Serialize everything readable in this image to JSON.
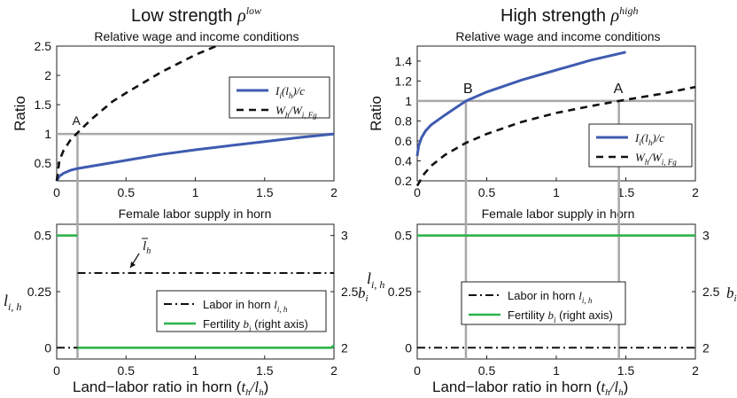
{
  "colors": {
    "blue": "#3f5bb0",
    "green": "#2eb34a",
    "gray": "#a8a8a8",
    "black": "#111111"
  },
  "panels": {
    "low": {
      "title": "Low strength ",
      "title_sym": "ρ",
      "title_sup": "low",
      "top_subtitle": "Relative wage and income conditions",
      "bottom_subtitle": "Female labor supply in horn",
      "top_ylabel": "Ratio",
      "xticks": [
        "0",
        "0.5",
        "1",
        "1.5",
        "2"
      ],
      "top_yticks": [
        "0.5",
        "1",
        "1.5",
        "2",
        "2.5"
      ],
      "bottom_yticks_left": [
        "0",
        "0.25",
        "0.5"
      ],
      "bottom_yticks_right": [
        "2",
        "2.5",
        "3"
      ],
      "legend_top": [
        "I_i(l̄_h)/c",
        "W_h/W_i,Fg"
      ],
      "legend_bottom": [
        "Labor in horn l_i,h",
        "Fertility b_i (right axis)"
      ],
      "point_label": "A",
      "lbar_label": "l̄_h"
    },
    "high": {
      "title": "High strength ",
      "title_sym": "ρ",
      "title_sup": "high",
      "top_subtitle": "Relative wage and income conditions",
      "bottom_subtitle": "Female labor supply in horn",
      "top_ylabel": "Ratio",
      "xticks": [
        "0",
        "0.5",
        "1",
        "1.5",
        "2"
      ],
      "top_yticks": [
        "0.2",
        "0.4",
        "0.6",
        "0.8",
        "1",
        "1.2",
        "1.4"
      ],
      "bottom_yticks_left": [
        "0",
        "0.25",
        "0.5"
      ],
      "bottom_yticks_right": [
        "2",
        "2.5",
        "3"
      ],
      "legend_top": [
        "I_i(l̄_h)/c",
        "W_h/W_i,Fg"
      ],
      "legend_bottom": [
        "Labor in horn l_i,h",
        "Fertility b_i (right axis)"
      ],
      "point_label_b": "B",
      "point_label_a": "A"
    }
  },
  "bottom_ylabel_left": "l_i,h",
  "bottom_ylabel_right": "b_i",
  "xlabel": "Land−labor ratio in horn (t_h/l_h)",
  "chart_data": [
    {
      "panel": "low-top",
      "type": "line",
      "title": "Relative wage and income conditions",
      "ylabel": "Ratio",
      "xlim": [
        0,
        2
      ],
      "ylim": [
        0.2,
        2.5
      ],
      "series": [
        {
          "name": "I_i(l̄_h)/c",
          "x": [
            0,
            0.02,
            0.05,
            0.1,
            0.15,
            0.25,
            0.5,
            0.75,
            1.0,
            1.25,
            1.5,
            1.75,
            2.0
          ],
          "y": [
            0.2,
            0.28,
            0.33,
            0.38,
            0.41,
            0.45,
            0.55,
            0.65,
            0.73,
            0.8,
            0.87,
            0.94,
            1.0
          ]
        },
        {
          "name": "W_h/W_i,Fg",
          "x": [
            0,
            0.02,
            0.05,
            0.1,
            0.15,
            0.25,
            0.4,
            0.5,
            0.75,
            1.0,
            1.15
          ],
          "y": [
            0.2,
            0.55,
            0.72,
            0.9,
            1.02,
            1.25,
            1.55,
            1.7,
            2.05,
            2.35,
            2.5
          ]
        }
      ],
      "hline": 1,
      "vline": 0.15,
      "annotation": "A"
    },
    {
      "panel": "low-bottom",
      "type": "line",
      "title": "Female labor supply in horn",
      "xlim": [
        0,
        2
      ],
      "ylim_left": [
        -0.05,
        0.55
      ],
      "ylim_right": [
        1.9,
        3.1
      ],
      "series": [
        {
          "name": "Labor in horn l_i,h",
          "axis": "left",
          "x": [
            0,
            0.15,
            0.15,
            2.0
          ],
          "y": [
            0,
            0,
            0.333,
            0.333
          ]
        },
        {
          "name": "Fertility b_i (right axis)",
          "axis": "right",
          "x": [
            0,
            0.15,
            0.15,
            1.98,
            2.0
          ],
          "y": [
            3,
            3,
            2,
            2,
            2.02
          ]
        }
      ],
      "vline": 0.15
    },
    {
      "panel": "high-top",
      "type": "line",
      "title": "Relative wage and income conditions",
      "ylabel": "Ratio",
      "xlim": [
        0,
        2
      ],
      "ylim": [
        0.2,
        1.55
      ],
      "series": [
        {
          "name": "I_i(l̄_h)/c",
          "x": [
            0,
            0.01,
            0.03,
            0.06,
            0.1,
            0.2,
            0.35,
            0.5,
            0.75,
            1.0,
            1.25,
            1.5
          ],
          "y": [
            0.45,
            0.55,
            0.63,
            0.7,
            0.76,
            0.86,
            1.0,
            1.09,
            1.21,
            1.31,
            1.41,
            1.49
          ]
        },
        {
          "name": "W_h/W_i,Fg",
          "x": [
            0,
            0.05,
            0.1,
            0.2,
            0.35,
            0.5,
            0.75,
            1.0,
            1.25,
            1.45,
            1.75,
            2.0
          ],
          "y": [
            0.15,
            0.27,
            0.35,
            0.46,
            0.58,
            0.67,
            0.79,
            0.88,
            0.95,
            1.0,
            1.07,
            1.14
          ]
        }
      ],
      "hline": 1,
      "vlines": [
        0.35,
        1.45
      ],
      "annotations": [
        "B",
        "A"
      ]
    },
    {
      "panel": "high-bottom",
      "type": "line",
      "title": "Female labor supply in horn",
      "xlim": [
        0,
        2
      ],
      "ylim_left": [
        -0.05,
        0.55
      ],
      "ylim_right": [
        1.9,
        3.1
      ],
      "series": [
        {
          "name": "Labor in horn l_i,h",
          "axis": "left",
          "x": [
            0,
            2
          ],
          "y": [
            0,
            0
          ]
        },
        {
          "name": "Fertility b_i (right axis)",
          "axis": "right",
          "x": [
            0,
            2
          ],
          "y": [
            3,
            3
          ]
        }
      ],
      "vlines": [
        0.35,
        1.45
      ]
    }
  ]
}
